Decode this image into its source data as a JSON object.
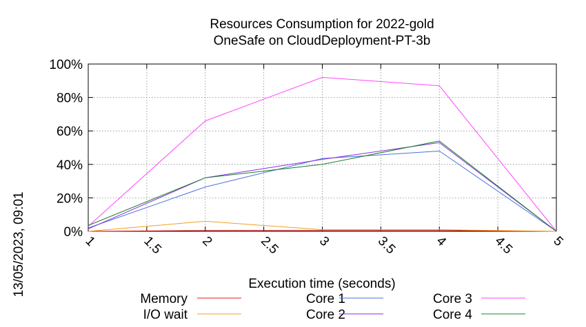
{
  "chart_data": {
    "type": "line",
    "title": "Resources Consumption for 2022-gold",
    "subtitle": "OneSafe on CloudDeployment-PT-3b",
    "xlabel": "Execution time (seconds)",
    "ylabel": "",
    "side_label": "13/05/2023, 09:01",
    "xlim": [
      1,
      5
    ],
    "ylim": [
      0,
      100
    ],
    "x_ticks": [
      "1",
      "1.5",
      "2",
      "2.5",
      "3",
      "3.5",
      "4",
      "4.5",
      "5"
    ],
    "y_ticks": [
      "0%",
      "20%",
      "40%",
      "60%",
      "80%",
      "100%"
    ],
    "grid": true,
    "legend_position": "bottom",
    "x": [
      1,
      2,
      3,
      4,
      5
    ],
    "series": [
      {
        "name": "Memory",
        "color": "#e41a1c",
        "values": [
          0,
          0.5,
          0.5,
          0.5,
          0
        ]
      },
      {
        "name": "I/O wait",
        "color": "#f0a020",
        "values": [
          0,
          6,
          1,
          1,
          0
        ]
      },
      {
        "name": "Core 1",
        "color": "#4a72d8",
        "values": [
          2,
          26.5,
          43.5,
          48,
          0
        ]
      },
      {
        "name": "Core 2",
        "color": "#8a2be2",
        "values": [
          1.5,
          32,
          43,
          53,
          0
        ]
      },
      {
        "name": "Core 3",
        "color": "#ff44ff",
        "values": [
          3,
          66,
          92,
          87,
          0
        ]
      },
      {
        "name": "Core 4",
        "color": "#1b7f2a",
        "values": [
          3.5,
          32,
          40,
          54,
          0
        ]
      }
    ]
  }
}
